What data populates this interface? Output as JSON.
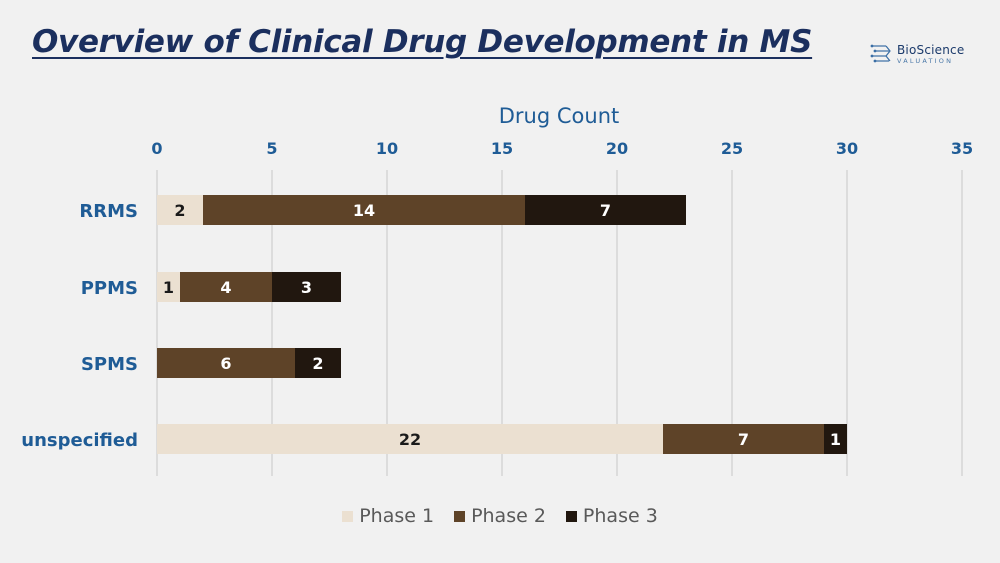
{
  "page": {
    "title": "Overview of Clinical Drug Development in MS",
    "logo": {
      "name": "BioScience",
      "subtitle": "VALUATION"
    }
  },
  "chart_data": {
    "type": "bar",
    "orientation": "horizontal",
    "stacked": true,
    "title": "Overview of Clinical Drug Development in MS",
    "xlabel": "Drug Count",
    "ylabel": "",
    "xlim": [
      0,
      35
    ],
    "xticks": [
      0,
      5,
      10,
      15,
      20,
      25,
      30,
      35
    ],
    "grid": "vertical",
    "legend_position": "bottom",
    "categories": [
      "RRMS",
      "PPMS",
      "SPMS",
      "unspecified"
    ],
    "series": [
      {
        "name": "Phase 1",
        "color": "#ebe0d1",
        "label_color": "#1a1a1a",
        "values": [
          2,
          1,
          0,
          22
        ]
      },
      {
        "name": "Phase 2",
        "color": "#5e4328",
        "label_color": "#ffffff",
        "values": [
          14,
          4,
          6,
          7
        ]
      },
      {
        "name": "Phase 3",
        "color": "#21170f",
        "label_color": "#ffffff",
        "values": [
          7,
          3,
          2,
          1
        ]
      }
    ]
  }
}
